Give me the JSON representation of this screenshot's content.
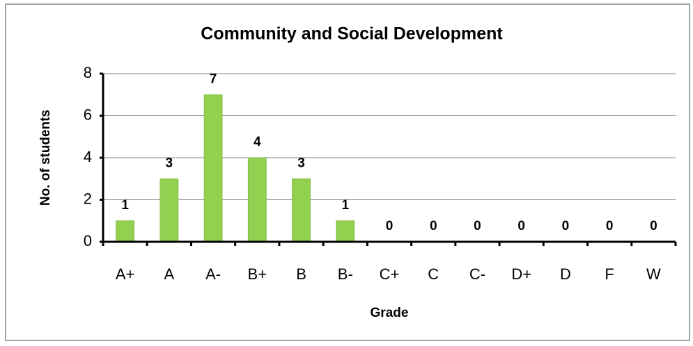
{
  "chart_data": {
    "type": "bar",
    "title": "Community and Social Development",
    "x_label": "Grade",
    "y_label": "No. of students",
    "categories": [
      "A+",
      "A",
      "A-",
      "B+",
      "B",
      "B-",
      "C+",
      "C",
      "C-",
      "D+",
      "D",
      "F",
      "W"
    ],
    "values": [
      1,
      3,
      7,
      4,
      3,
      1,
      0,
      0,
      0,
      0,
      0,
      0,
      0
    ],
    "color": "#92d050",
    "ylim": [
      0,
      8
    ],
    "yticks": [
      0,
      2,
      4,
      6,
      8
    ],
    "grid": true
  }
}
